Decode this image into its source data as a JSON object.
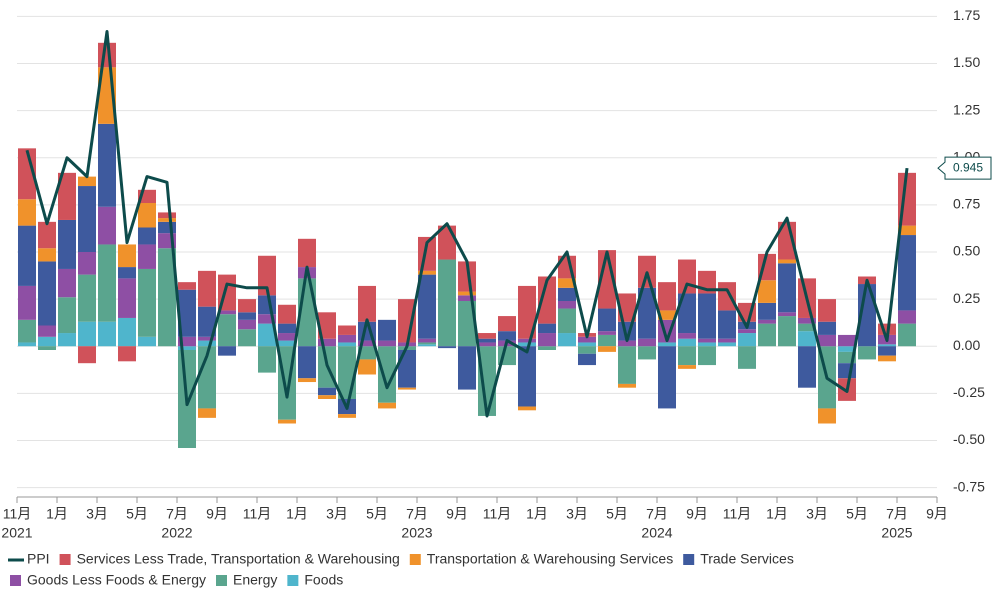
{
  "chart_data": {
    "type": "bar",
    "stacked": true,
    "categories": [
      "2021-11",
      "2021-12",
      "2022-01",
      "2022-02",
      "2022-03",
      "2022-04",
      "2022-05",
      "2022-06",
      "2022-07",
      "2022-08",
      "2022-09",
      "2022-10",
      "2022-11",
      "2022-12",
      "2023-01",
      "2023-02",
      "2023-03",
      "2023-04",
      "2023-05",
      "2023-06",
      "2023-07",
      "2023-08",
      "2023-09",
      "2023-10",
      "2023-11",
      "2023-12",
      "2024-01",
      "2024-02",
      "2024-03",
      "2024-04",
      "2024-05",
      "2024-06",
      "2024-07",
      "2024-08",
      "2024-09",
      "2024-10",
      "2024-11",
      "2024-12",
      "2025-01",
      "2025-02",
      "2025-03",
      "2025-04",
      "2025-05",
      "2025-06",
      "2025-07"
    ],
    "xlim": [
      0,
      46
    ],
    "xticks": [
      {
        "value": 0,
        "label": "11月"
      },
      {
        "value": 2,
        "label": "1月"
      },
      {
        "value": 4,
        "label": "3月"
      },
      {
        "value": 6,
        "label": "5月"
      },
      {
        "value": 8,
        "label": "7月"
      },
      {
        "value": 10,
        "label": "9月"
      },
      {
        "value": 12,
        "label": "11月"
      },
      {
        "value": 14,
        "label": "1月"
      },
      {
        "value": 16,
        "label": "3月"
      },
      {
        "value": 18,
        "label": "5月"
      },
      {
        "value": 20,
        "label": "7月"
      },
      {
        "value": 22,
        "label": "9月"
      },
      {
        "value": 24,
        "label": "11月"
      },
      {
        "value": 26,
        "label": "1月"
      },
      {
        "value": 28,
        "label": "3月"
      },
      {
        "value": 30,
        "label": "5月"
      },
      {
        "value": 32,
        "label": "7月"
      },
      {
        "value": 34,
        "label": "9月"
      },
      {
        "value": 36,
        "label": "11月"
      },
      {
        "value": 38,
        "label": "1月"
      },
      {
        "value": 40,
        "label": "3月"
      },
      {
        "value": 42,
        "label": "5月"
      },
      {
        "value": 44,
        "label": "7月"
      },
      {
        "value": 46,
        "label": "9月"
      }
    ],
    "xtick_years": [
      {
        "value": 0,
        "label": "2021"
      },
      {
        "value": 8,
        "label": "2022"
      },
      {
        "value": 20,
        "label": "2023"
      },
      {
        "value": 32,
        "label": "2024"
      },
      {
        "value": 44,
        "label": "2025"
      }
    ],
    "ylim": [
      -0.8,
      1.8
    ],
    "yticks": [
      1.75,
      {
        "value": 1.5,
        "label": "1.50"
      },
      1.25,
      {
        "value": 1,
        "label": "1.00"
      },
      0.75,
      {
        "value": 0.5,
        "label": "0.50"
      },
      0.25,
      {
        "value": 0,
        "label": "0.00"
      },
      -0.25,
      {
        "value": -0.5,
        "label": "-0.50"
      },
      -0.75
    ],
    "grid": true,
    "legend": "bottom",
    "series": [
      {
        "name": "PPI",
        "type": "line",
        "color": "#0d4b4b",
        "values": [
          1.04,
          0.65,
          1.0,
          0.9,
          1.67,
          0.55,
          0.9,
          0.87,
          -0.31,
          -0.05,
          0.33,
          0.31,
          0.31,
          -0.27,
          0.42,
          -0.1,
          -0.33,
          0.14,
          -0.22,
          0,
          0.55,
          0.65,
          0.45,
          -0.37,
          0.03,
          -0.03,
          0.35,
          0.5,
          0.05,
          0.5,
          0.03,
          0.39,
          0.03,
          0.33,
          0.3,
          0.3,
          0.1,
          0.5,
          0.68,
          0.25,
          -0.17,
          -0.24,
          0.35,
          0.03,
          0.945
        ]
      },
      {
        "name": "Services Less Trade, Transportation & Warehousing",
        "color": "#d0525a",
        "values": [
          0.27,
          0.14,
          0.25,
          -0.09,
          0.13,
          -0.08,
          0.07,
          0.03,
          0.04,
          0.19,
          0.19,
          0.07,
          0.21,
          0.1,
          0.15,
          0.14,
          0.05,
          0.19,
          0,
          0.23,
          0.18,
          0.18,
          0.16,
          0.03,
          0.08,
          0.28,
          0.25,
          0.12,
          0.02,
          0.31,
          0.15,
          0.17,
          0.15,
          0.18,
          0.12,
          0.15,
          0.1,
          0.14,
          0.2,
          0.21,
          0.12,
          -0.12,
          0.04,
          0.06,
          0.28
        ]
      },
      {
        "name": "Transportation & Warehousing Services",
        "color": "#f0922b",
        "values": [
          0.14,
          0.07,
          0,
          0.05,
          0.3,
          0.12,
          0.13,
          0.02,
          0,
          -0.05,
          0,
          0,
          0,
          -0.02,
          -0.02,
          -0.02,
          -0.02,
          -0.08,
          -0.03,
          -0.01,
          0.02,
          0,
          0.02,
          0,
          0,
          -0.02,
          0,
          0.05,
          0,
          -0.03,
          -0.02,
          0,
          0.05,
          -0.02,
          0,
          0,
          0,
          0.12,
          0.02,
          0,
          -0.08,
          0,
          0,
          -0.03,
          0.05
        ]
      },
      {
        "name": "Trade Services",
        "color": "#3e5a9e",
        "values": [
          0.32,
          0.34,
          0.26,
          0.35,
          0.44,
          0.06,
          0.09,
          0.06,
          0.25,
          0.16,
          -0.05,
          0.04,
          0.1,
          0.05,
          -0.17,
          -0.04,
          -0.08,
          0.1,
          0.11,
          -0.2,
          0.34,
          -0.01,
          -0.23,
          0.02,
          0.05,
          -0.32,
          0.05,
          0.07,
          -0.06,
          0.12,
          0.1,
          0.27,
          -0.33,
          0.21,
          0.24,
          0.15,
          0.04,
          0.09,
          0.26,
          -0.22,
          0.07,
          -0.08,
          0.33,
          -0.05,
          0.4
        ]
      },
      {
        "name": "Goods Less Foods & Energy",
        "color": "#8e4fa4",
        "values": [
          0.18,
          0.06,
          0.15,
          0.12,
          0.2,
          0.21,
          0.13,
          0.08,
          0.05,
          0.02,
          0.02,
          0.05,
          0.05,
          0.04,
          0.06,
          0.04,
          0.04,
          0.03,
          0.03,
          0.02,
          0.02,
          0,
          0.03,
          0.02,
          0.03,
          0.02,
          0.07,
          0.04,
          0.03,
          0.02,
          0.03,
          0.04,
          0.12,
          0.03,
          0.02,
          0.02,
          0.02,
          0.02,
          0.02,
          0.03,
          0.06,
          0.06,
          0,
          0.05,
          0.07
        ]
      },
      {
        "name": "Energy",
        "color": "#5aa58e",
        "values": [
          0.12,
          -0.02,
          0.19,
          0.25,
          0.41,
          0,
          0.36,
          0.52,
          -0.52,
          -0.33,
          0.17,
          0.09,
          -0.14,
          -0.39,
          0.36,
          -0.22,
          -0.28,
          -0.07,
          -0.3,
          -0.02,
          0.01,
          0.46,
          0.24,
          -0.37,
          -0.1,
          0,
          -0.02,
          0.13,
          -0.04,
          0.06,
          -0.2,
          -0.07,
          0,
          -0.1,
          -0.1,
          0,
          -0.12,
          0.12,
          0.16,
          0.04,
          -0.33,
          -0.06,
          -0.07,
          0,
          0.12
        ]
      },
      {
        "name": "Foods",
        "color": "#4fb5cc",
        "values": [
          0.02,
          0.05,
          0.07,
          0.13,
          0.13,
          0.15,
          0.05,
          0,
          -0.02,
          0.03,
          0,
          0,
          0.12,
          0.03,
          0,
          0,
          0.02,
          0,
          0,
          0,
          0.01,
          0,
          0,
          0,
          0,
          0.02,
          0,
          0.07,
          0.02,
          0,
          0,
          0,
          0.02,
          0.04,
          0.02,
          0.02,
          0.07,
          0,
          0,
          0.08,
          0,
          -0.03,
          0,
          0.01,
          0
        ]
      }
    ]
  }
}
